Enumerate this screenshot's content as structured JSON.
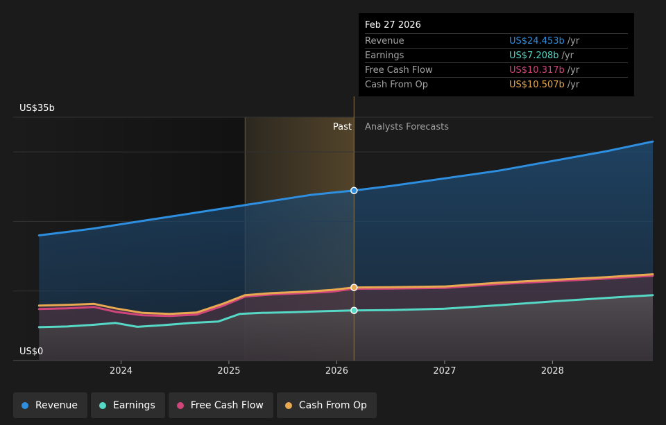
{
  "chart_data": {
    "type": "area",
    "y_axis": {
      "min": 0,
      "max": 35,
      "unit": "US$b",
      "top_label": "US$35b",
      "bottom_label": "US$0"
    },
    "x_ticks": [
      {
        "label": "2024",
        "x": 2024.0
      },
      {
        "label": "2025",
        "x": 2025.0
      },
      {
        "label": "2026",
        "x": 2026.0
      },
      {
        "label": "2027",
        "x": 2027.0
      },
      {
        "label": "2028",
        "x": 2028.0
      }
    ],
    "x_range": [
      2023.0,
      2028.93
    ],
    "past_label": "Past",
    "forecast_label": "Analysts Forecasts",
    "highlight_start": 2025.15,
    "divider_x": 2026.16,
    "grid": true,
    "series": [
      {
        "name": "Revenue",
        "color": "#2e8fe0",
        "points": [
          [
            2023.24,
            18.0
          ],
          [
            2023.5,
            18.5
          ],
          [
            2023.75,
            19.0
          ],
          [
            2024.0,
            19.6
          ],
          [
            2024.25,
            20.2
          ],
          [
            2024.5,
            20.8
          ],
          [
            2024.75,
            21.4
          ],
          [
            2025.0,
            22.0
          ],
          [
            2025.25,
            22.6
          ],
          [
            2025.5,
            23.2
          ],
          [
            2025.75,
            23.8
          ],
          [
            2026.0,
            24.2
          ],
          [
            2026.16,
            24.45
          ],
          [
            2026.5,
            25.1
          ],
          [
            2027.0,
            26.2
          ],
          [
            2027.5,
            27.3
          ],
          [
            2028.0,
            28.7
          ],
          [
            2028.5,
            30.1
          ],
          [
            2028.93,
            31.5
          ]
        ]
      },
      {
        "name": "Earnings",
        "color": "#56d8c6",
        "points": [
          [
            2023.24,
            4.8
          ],
          [
            2023.5,
            4.9
          ],
          [
            2023.75,
            5.15
          ],
          [
            2023.95,
            5.4
          ],
          [
            2024.15,
            4.85
          ],
          [
            2024.4,
            5.1
          ],
          [
            2024.65,
            5.4
          ],
          [
            2024.9,
            5.6
          ],
          [
            2025.1,
            6.7
          ],
          [
            2025.3,
            6.85
          ],
          [
            2025.6,
            6.95
          ],
          [
            2025.9,
            7.1
          ],
          [
            2026.16,
            7.21
          ],
          [
            2026.5,
            7.25
          ],
          [
            2027.0,
            7.45
          ],
          [
            2027.5,
            7.95
          ],
          [
            2028.0,
            8.5
          ],
          [
            2028.5,
            9.0
          ],
          [
            2028.93,
            9.4
          ]
        ]
      },
      {
        "name": "Free Cash Flow",
        "color": "#d0467a",
        "points": [
          [
            2023.24,
            7.4
          ],
          [
            2023.5,
            7.5
          ],
          [
            2023.75,
            7.7
          ],
          [
            2023.95,
            7.0
          ],
          [
            2024.2,
            6.5
          ],
          [
            2024.45,
            6.4
          ],
          [
            2024.7,
            6.6
          ],
          [
            2024.95,
            7.9
          ],
          [
            2025.15,
            9.2
          ],
          [
            2025.4,
            9.5
          ],
          [
            2025.7,
            9.7
          ],
          [
            2025.95,
            9.9
          ],
          [
            2026.16,
            10.32
          ],
          [
            2026.5,
            10.35
          ],
          [
            2027.0,
            10.45
          ],
          [
            2027.5,
            11.0
          ],
          [
            2028.0,
            11.4
          ],
          [
            2028.5,
            11.8
          ],
          [
            2028.93,
            12.2
          ]
        ]
      },
      {
        "name": "Cash From Op",
        "color": "#e8a951",
        "points": [
          [
            2023.24,
            7.9
          ],
          [
            2023.5,
            8.0
          ],
          [
            2023.75,
            8.15
          ],
          [
            2023.95,
            7.5
          ],
          [
            2024.2,
            6.85
          ],
          [
            2024.45,
            6.7
          ],
          [
            2024.7,
            6.9
          ],
          [
            2024.95,
            8.2
          ],
          [
            2025.15,
            9.4
          ],
          [
            2025.4,
            9.7
          ],
          [
            2025.7,
            9.9
          ],
          [
            2025.95,
            10.15
          ],
          [
            2026.16,
            10.51
          ],
          [
            2026.5,
            10.55
          ],
          [
            2027.0,
            10.65
          ],
          [
            2027.5,
            11.2
          ],
          [
            2028.0,
            11.6
          ],
          [
            2028.5,
            12.0
          ],
          [
            2028.93,
            12.4
          ]
        ]
      }
    ]
  },
  "tooltip": {
    "date": "Feb 27 2026",
    "unit": "/yr",
    "rows": [
      {
        "name": "Revenue",
        "value": "US$24.453b",
        "color": "#2e8fe0"
      },
      {
        "name": "Earnings",
        "value": "US$7.208b",
        "color": "#56d8c6"
      },
      {
        "name": "Free Cash Flow",
        "value": "US$10.317b",
        "color": "#d0467a"
      },
      {
        "name": "Cash From Op",
        "value": "US$10.507b",
        "color": "#e8a951"
      }
    ]
  },
  "legend": [
    {
      "label": "Revenue",
      "color": "#2e8fe0"
    },
    {
      "label": "Earnings",
      "color": "#56d8c6"
    },
    {
      "label": "Free Cash Flow",
      "color": "#d0467a"
    },
    {
      "label": "Cash From Op",
      "color": "#e8a951"
    }
  ]
}
